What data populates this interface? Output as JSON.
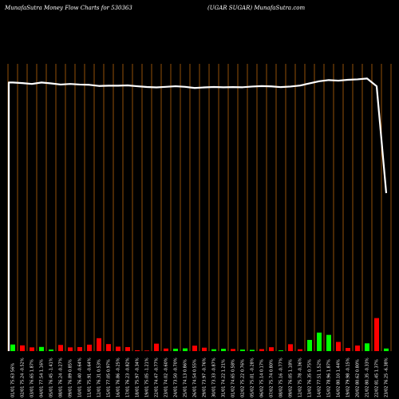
{
  "header": {
    "left": "MunafaSutra  Money Flow  Charts for 530363",
    "middle": "(UGAR SUGAR) MunafaSutra.com"
  },
  "colors": {
    "background": "#000000",
    "gridline": "#b8650a",
    "line": "#ffffff",
    "up": "#00ff00",
    "down": "#ff0000"
  },
  "chart_data": {
    "type": "bar",
    "title": "MunafaSutra  Money Flow  Charts for 530363",
    "subtitle": "(UGAR SUGAR) MunafaSutra.com",
    "grid": true,
    "categories": [
      "01/01 75.63 56%",
      "02/01 75.24 -0.52%",
      "03/01 76.65 1.87%",
      "04/01 77.54 1.16%",
      "05/01 76.45 -1.41%",
      "08/01 76.24 -0.27%",
      "09/01 76.89 0.85%",
      "10/01 76.40 -0.64%",
      "11/01 75.91 -0.64%",
      "12/01 76.31 0.53%",
      "15/01 77.05 0.97%",
      "16/01 76.86 -0.25%",
      "17/01 76.23 -0.82%",
      "18/01 75.97 -0.34%",
      "19/01 75.05 -1.21%",
      "22/01 74.47 -0.77%",
      "23/01 74.02 -0.60%",
      "24/01 73.50 -0.70%",
      "25/01 74.13 0.86%",
      "26/01 74.54 0.55%",
      "29/01 73.97 -0.76%",
      "30/01 73.33 -0.87%",
      "31/01 74.22 1.21%",
      "01/02 74.65 0.58%",
      "02/02 75.22 0.76%",
      "05/02 75.01 -0.28%",
      "06/02 75.14 0.17%",
      "07/02 75.74 0.80%",
      "08/02 75.16 -0.77%",
      "09/02 76.05 1.18%",
      "12/02 75.78 -0.36%",
      "13/02 76.35 0.75%",
      "14/02 77.51 1.52%",
      "15/02 78.96 1.87%",
      "16/02 80.10 1.44%",
      "19/02 79.98 -0.15%",
      "20/02 80.62 0.80%",
      "21/02 80.35 -0.33%",
      "22/02 81.45 1.37%",
      "23/02 76.25 -6.38%"
    ],
    "flow": [
      2.3,
      2.0,
      1.3,
      1.45,
      0.55,
      2.15,
      1.3,
      1.4,
      2.25,
      4.5,
      2.45,
      1.55,
      1.4,
      0.3,
      0.2,
      2.6,
      0.9,
      0.85,
      0.95,
      1.9,
      1.2,
      0.65,
      0.8,
      0.75,
      0.55,
      0.45,
      0.7,
      1.35,
      0.25,
      2.4,
      0.65,
      3.9,
      6.45,
      5.65,
      3.2,
      1.1,
      1.95,
      2.7,
      11.5,
      0.9
    ],
    "direction": [
      "up",
      "down",
      "down",
      "up",
      "up",
      "down",
      "down",
      "down",
      "down",
      "down",
      "down",
      "down",
      "down",
      "down",
      "down",
      "down",
      "down",
      "up",
      "up",
      "down",
      "down",
      "up",
      "up",
      "down",
      "up",
      "up",
      "down",
      "down",
      "up",
      "down",
      "down",
      "up",
      "up",
      "up",
      "down",
      "down",
      "down",
      "up",
      "down",
      "up"
    ],
    "line": [
      93.5,
      93.3,
      93.0,
      93.5,
      93.2,
      92.8,
      93.0,
      92.8,
      92.7,
      92.3,
      92.4,
      92.4,
      92.5,
      92.2,
      91.95,
      91.8,
      92.0,
      92.2,
      92.0,
      91.6,
      91.8,
      91.95,
      91.85,
      91.9,
      91.85,
      92.1,
      92.25,
      92.15,
      91.9,
      92.1,
      92.45,
      93.2,
      93.95,
      94.35,
      94.15,
      94.45,
      94.6,
      94.9,
      92.2,
      55.0
    ],
    "ylim": [
      0,
      100
    ]
  }
}
